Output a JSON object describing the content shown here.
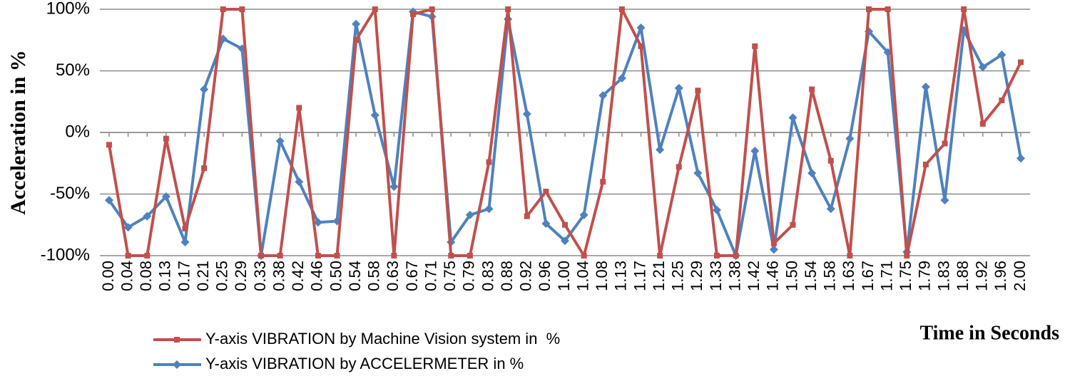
{
  "chart_data": {
    "type": "line",
    "y_label": "Acceleration in %",
    "x_label": "Time in Seconds",
    "categories": [
      "0.00",
      "0.04",
      "0.08",
      "0.13",
      "0.17",
      "0.21",
      "0.25",
      "0.29",
      "0.33",
      "0.38",
      "0.42",
      "0.46",
      "0.50",
      "0.54",
      "0.58",
      "0.63",
      "0.67",
      "0.71",
      "0.75",
      "0.79",
      "0.83",
      "0.88",
      "0.92",
      "0.96",
      "1.00",
      "1.04",
      "1.08",
      "1.13",
      "1.17",
      "1.21",
      "1.25",
      "1.29",
      "1.33",
      "1.38",
      "1.42",
      "1.46",
      "1.50",
      "1.54",
      "1.58",
      "1.63",
      "1.67",
      "1.71",
      "1.75",
      "1.79",
      "1.83",
      "1.88",
      "1.92",
      "1.96",
      "2.00"
    ],
    "series": [
      {
        "name": "Y-axis VIBRATION by Machine Vision system in  %",
        "color": "#c0504d",
        "marker": "square",
        "values": [
          -10,
          -100,
          -100,
          -5,
          -78,
          -29,
          100,
          100,
          -100,
          -100,
          20,
          -100,
          -100,
          75,
          100,
          -100,
          96,
          100,
          -100,
          -100,
          -24,
          100,
          -68,
          -48,
          -75,
          -100,
          -40,
          100,
          70,
          -100,
          -28,
          34,
          -100,
          -100,
          70,
          -90,
          -75,
          35,
          -23,
          -100,
          100,
          100,
          -100,
          -26,
          -9,
          100,
          7,
          26,
          57
        ]
      },
      {
        "name": "Y-axis VIBRATION by ACCELERMETER in %",
        "color": "#4f81bd",
        "marker": "diamond",
        "values": [
          -55,
          -77,
          -68,
          -52,
          -89,
          35,
          76,
          68,
          -100,
          -7,
          -40,
          -73,
          -72,
          88,
          14,
          -44,
          98,
          94,
          -89,
          -67,
          -62,
          92,
          15,
          -74,
          -88,
          -67,
          30,
          44,
          85,
          -14,
          36,
          -33,
          -63,
          -100,
          -15,
          -95,
          12,
          -33,
          -62,
          -5,
          82,
          65,
          -97,
          37,
          -55,
          83,
          53,
          63,
          -21
        ]
      }
    ],
    "ylim": [
      -100,
      100
    ],
    "yticks": [
      {
        "value": -100,
        "label": "-100%"
      },
      {
        "value": -50,
        "label": "-50%"
      },
      {
        "value": 0,
        "label": "0%"
      },
      {
        "value": 50,
        "label": "50%"
      },
      {
        "value": 100,
        "label": "100%"
      }
    ],
    "grid": true
  }
}
